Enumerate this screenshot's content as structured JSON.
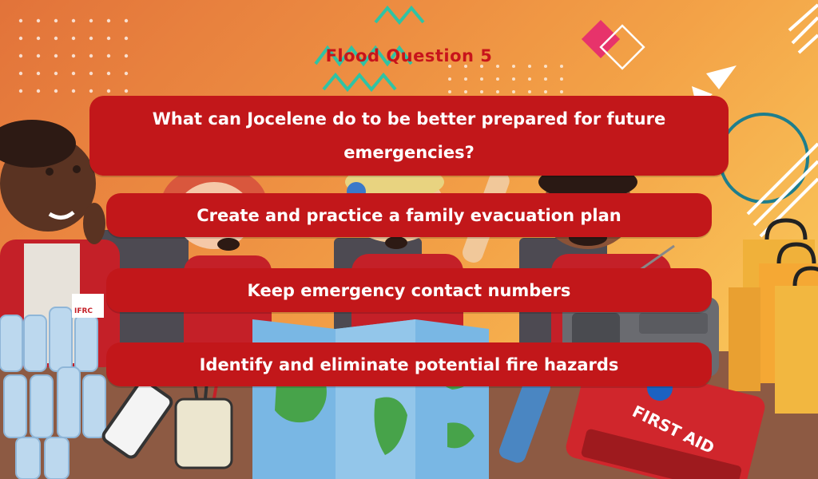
{
  "quiz": {
    "title": "Flood Question 5",
    "question": "What can Jocelene do to be better prepared for future emergencies?",
    "answers": [
      "Create and practice a family evacuation plan",
      "Keep emergency contact numbers",
      "Identify and eliminate potential fire hazards"
    ]
  },
  "illustration": {
    "badge_text": "IFRC",
    "kit_text": "FIRST AID",
    "icons": [
      "character-icon",
      "water-bottles-icon",
      "map-icon",
      "first-aid-kit-icon",
      "flashlight-icon",
      "radio-icon",
      "shopping-bags-icon",
      "phone-icon",
      "pencil-cup-icon"
    ]
  },
  "colors": {
    "panel": "#c2171a",
    "title": "#c8141b",
    "background_start": "#e2733a",
    "background_end": "#fbcf62"
  }
}
